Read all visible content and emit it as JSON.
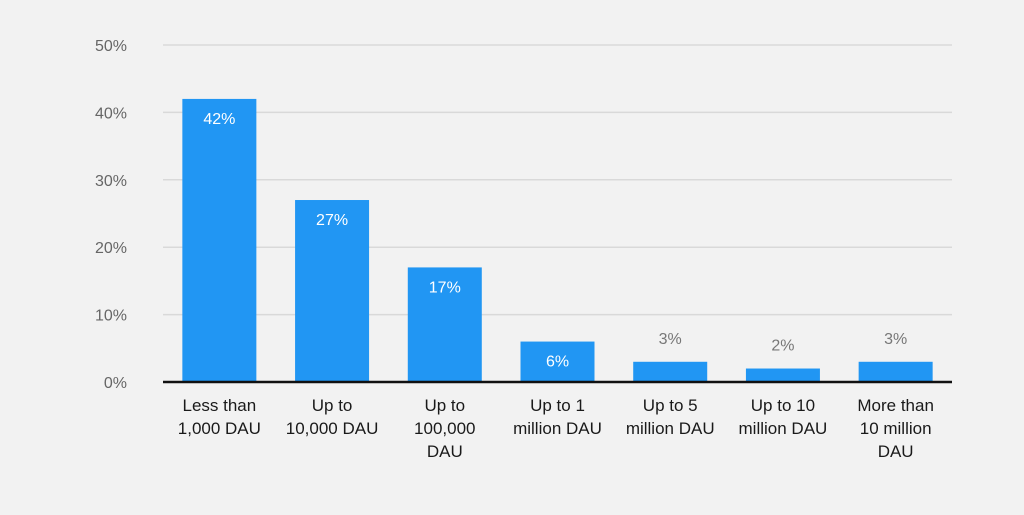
{
  "chart_data": {
    "type": "bar",
    "categories": [
      [
        "Less than",
        "1,000 DAU"
      ],
      [
        "Up to",
        "10,000 DAU"
      ],
      [
        "Up to",
        "100,000",
        "DAU"
      ],
      [
        "Up to 1",
        "million DAU"
      ],
      [
        "Up to 5",
        "million DAU"
      ],
      [
        "Up to 10",
        "million DAU"
      ],
      [
        "More than",
        "10 million",
        "DAU"
      ]
    ],
    "values": [
      42,
      27,
      17,
      6,
      3,
      2,
      3
    ],
    "data_labels": [
      "42%",
      "27%",
      "17%",
      "6%",
      "3%",
      "2%",
      "3%"
    ],
    "ylim": [
      0,
      50
    ],
    "yticks": [
      0,
      10,
      20,
      30,
      40,
      50
    ],
    "ytick_labels": [
      "0%",
      "10%",
      "20%",
      "30%",
      "40%",
      "50%"
    ],
    "grid": true,
    "title": "",
    "xlabel": "",
    "ylabel": ""
  },
  "colors": {
    "bar": "#2196f3",
    "grid": "#d9d9d9",
    "axis": "#111111",
    "background": "#f2f2f2"
  }
}
